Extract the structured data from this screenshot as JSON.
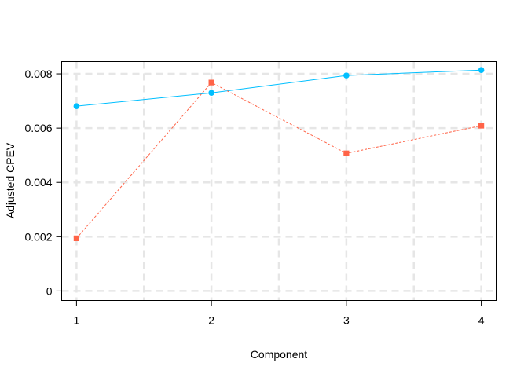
{
  "chart_data": {
    "type": "line",
    "title": "",
    "xlabel": "Component",
    "ylabel": "Adjusted CPEV",
    "x": [
      1,
      2,
      3,
      4
    ],
    "xticks": [
      "1",
      "2",
      "3",
      "4"
    ],
    "yticks": [
      "0",
      "0.002",
      "0.004",
      "0.006",
      "0.008"
    ],
    "ylim": [
      -0.00035,
      0.00845
    ],
    "xlim": [
      0.89,
      4.11
    ],
    "grid": true,
    "series": [
      {
        "color": "#00BFFF",
        "marker": "circle",
        "line": "solid",
        "values": [
          0.00681,
          0.0073,
          0.00794,
          0.00814
        ]
      },
      {
        "color": "#FF6347",
        "marker": "square",
        "line": "dashed",
        "values": [
          0.00194,
          0.00768,
          0.00507,
          0.00609
        ]
      }
    ]
  }
}
